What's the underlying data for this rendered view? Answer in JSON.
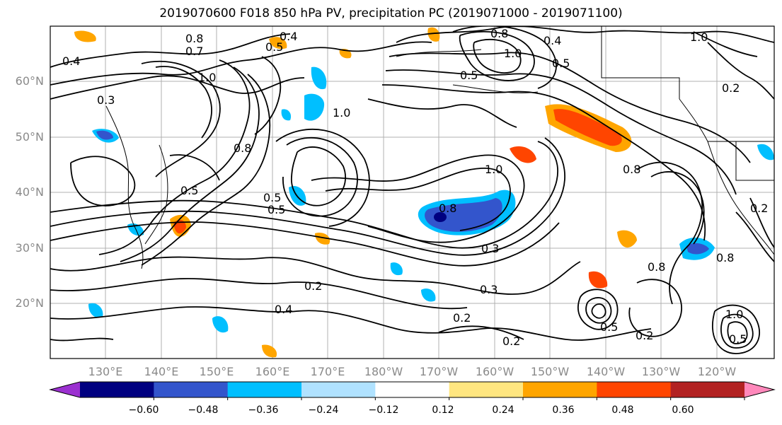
{
  "title": "2019070600 F018 850 hPa PV, precipitation PC (2019071000 - 2019071100)",
  "map": {
    "lat_labels": [
      "60°N",
      "50°N",
      "40°N",
      "30°N",
      "20°N"
    ],
    "lon_labels": [
      "130°E",
      "140°E",
      "150°E",
      "160°E",
      "170°E",
      "180°W",
      "170°W",
      "160°W",
      "150°W",
      "140°W",
      "130°W",
      "120°W"
    ],
    "contour_labels": [
      "0.8",
      "0.7",
      "0.4",
      "0.5",
      "0.4",
      "0.3",
      "1.0",
      "0.5",
      "0.8",
      "0.5",
      "1.0",
      "0.5",
      "0.8",
      "1.0",
      "0.4",
      "0.5",
      "0.5",
      "0.8",
      "1.0",
      "0.3",
      "0.2",
      "0.4",
      "0.3",
      "0.2",
      "0.2",
      "0.2",
      "0.8",
      "0.8",
      "0.5",
      "1.0",
      "0.8",
      "1.0",
      "0.5",
      "0.2",
      "0.2"
    ]
  },
  "colorbar": {
    "colors": [
      "#9b30d0",
      "#000080",
      "#3355cc",
      "#00bfff",
      "#b0e2ff",
      "#ffffff",
      "#ffe680",
      "#ffa500",
      "#ff4500",
      "#b22222",
      "#ff88bb"
    ],
    "tick_labels": [
      "−0.60",
      "−0.48",
      "−0.36",
      "−0.24",
      "−0.12",
      "0.12",
      "0.24",
      "0.36",
      "0.48",
      "0.60"
    ]
  },
  "colors": {
    "grid": "#b0b0b0",
    "contour": "#000000",
    "coast": "#000000"
  }
}
